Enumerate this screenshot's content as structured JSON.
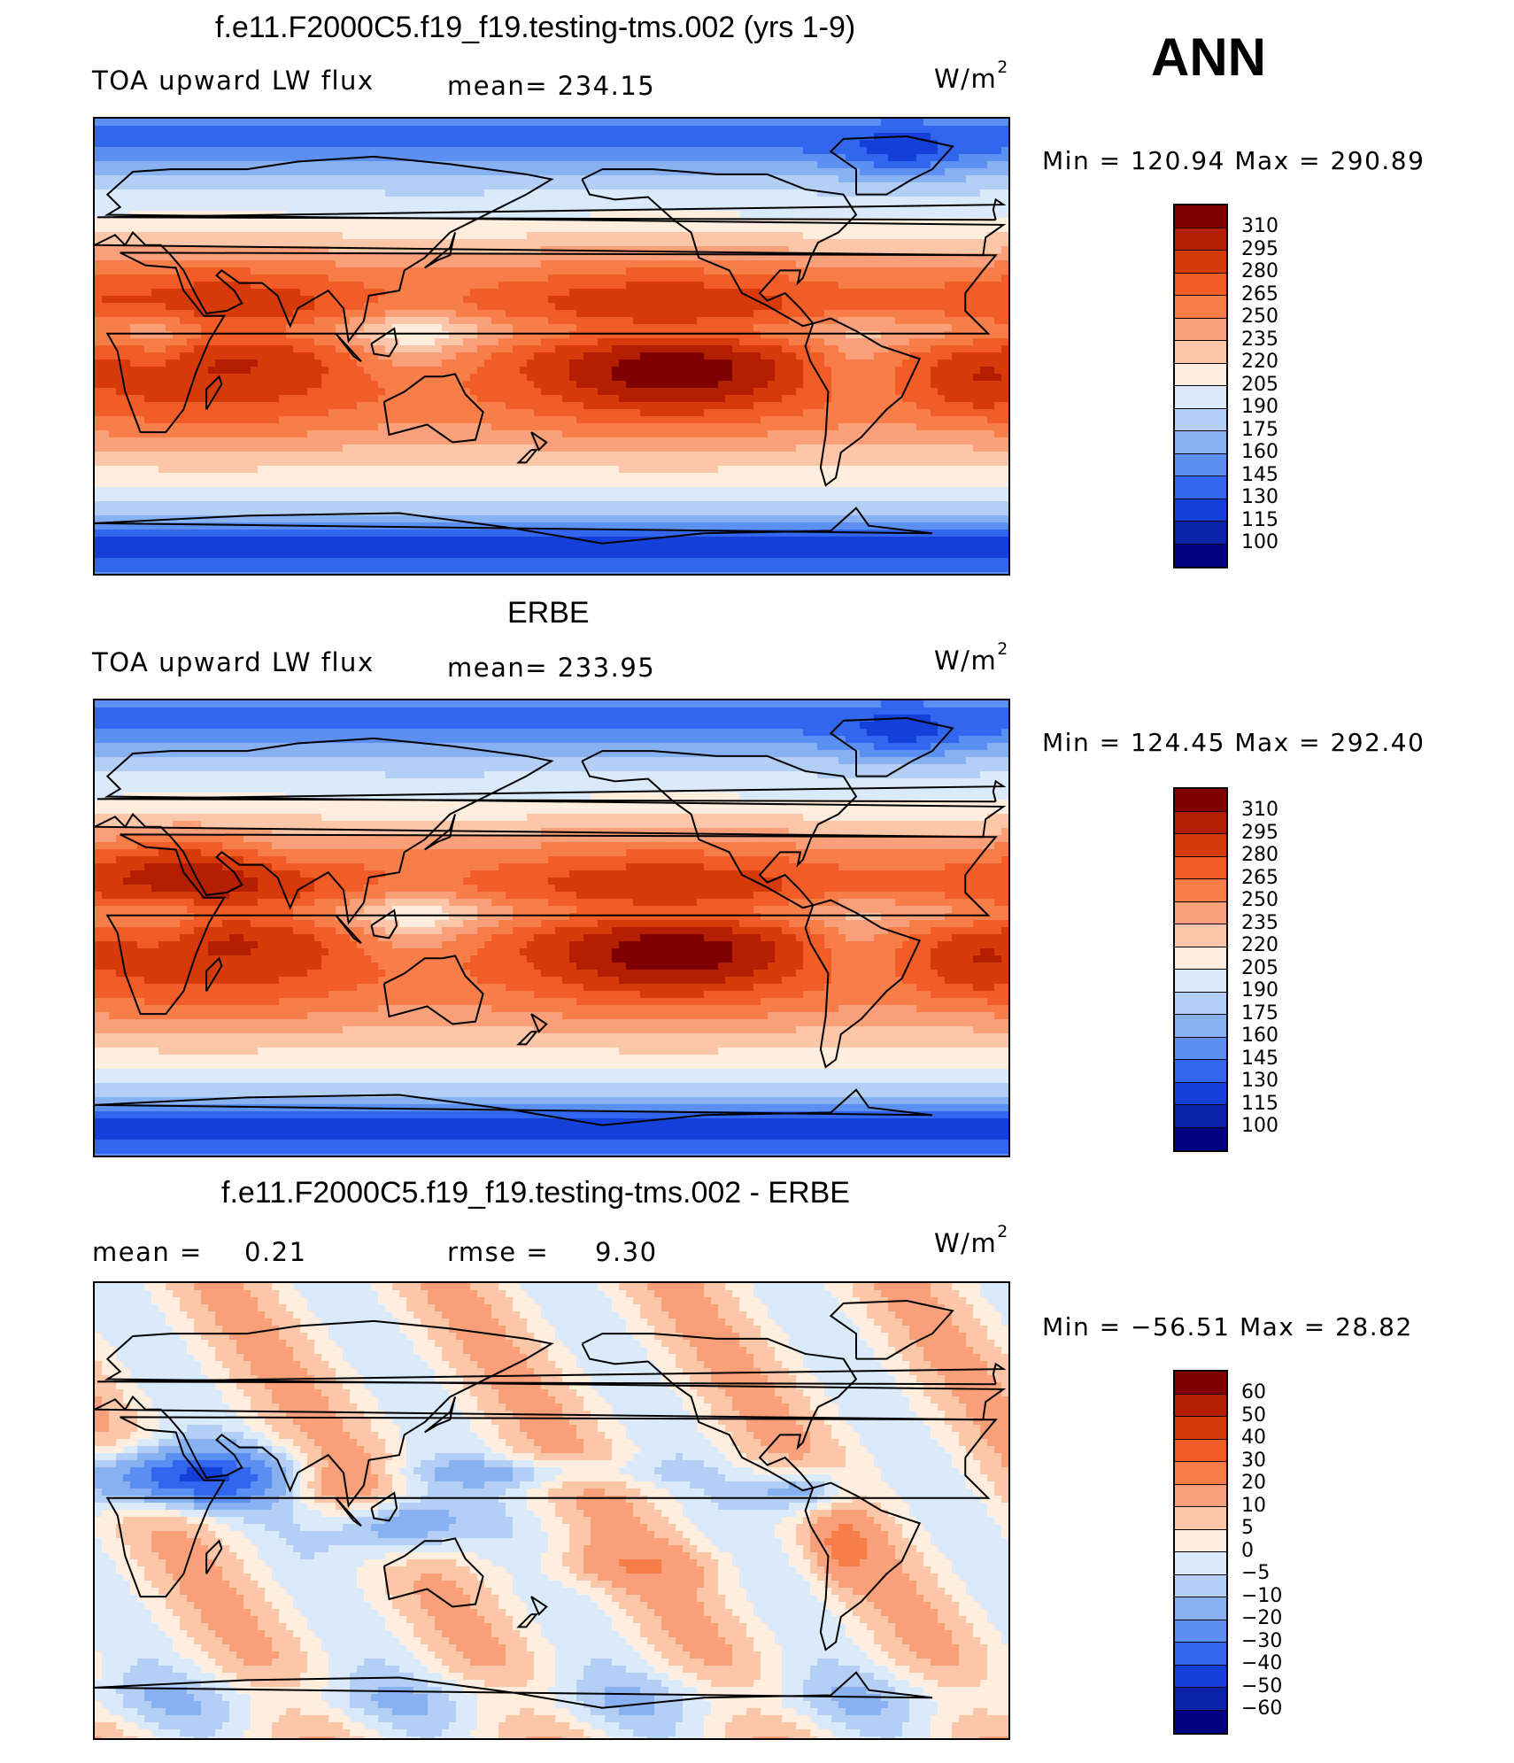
{
  "header": {
    "season": "ANN"
  },
  "panels": [
    {
      "title": "f.e11.F2000C5.f19_f19.testing-tms.002 (yrs 1-9)",
      "left_label": "TOA upward LW flux",
      "mean_label": "mean=  234.15",
      "units": "W/m",
      "units_sup": "2",
      "minmax": "Min  =  120.94  Max  =  290.89",
      "colorbar_levels": [
        "310",
        "295",
        "280",
        "265",
        "250",
        "235",
        "220",
        "205",
        "190",
        "175",
        "160",
        "145",
        "130",
        "115",
        "100"
      ],
      "colors": [
        "#7f0000",
        "#b31f00",
        "#d6390a",
        "#f25c26",
        "#f77d49",
        "#f9a07a",
        "#fcc6a8",
        "#ffeedd",
        "#dbeafa",
        "#b3cff5",
        "#88b1f2",
        "#5c8ff2",
        "#3366ee",
        "#1440d9",
        "#0a22a8",
        "#000080"
      ],
      "color_scale": [
        100,
        115,
        130,
        145,
        160,
        175,
        190,
        205,
        220,
        235,
        250,
        265,
        280,
        295,
        310
      ],
      "field_type": "model"
    },
    {
      "title": "ERBE",
      "left_label": "TOA upward LW flux",
      "mean_label": "mean=  233.95",
      "units": "W/m",
      "units_sup": "2",
      "minmax": "Min  =  124.45  Max  =  292.40",
      "colorbar_levels": [
        "310",
        "295",
        "280",
        "265",
        "250",
        "235",
        "220",
        "205",
        "190",
        "175",
        "160",
        "145",
        "130",
        "115",
        "100"
      ],
      "colors": [
        "#7f0000",
        "#b31f00",
        "#d6390a",
        "#f25c26",
        "#f77d49",
        "#f9a07a",
        "#fcc6a8",
        "#ffeedd",
        "#dbeafa",
        "#b3cff5",
        "#88b1f2",
        "#5c8ff2",
        "#3366ee",
        "#1440d9",
        "#0a22a8",
        "#000080"
      ],
      "color_scale": [
        100,
        115,
        130,
        145,
        160,
        175,
        190,
        205,
        220,
        235,
        250,
        265,
        280,
        295,
        310
      ],
      "field_type": "obs"
    },
    {
      "title": "f.e11.F2000C5.f19_f19.testing-tms.002 - ERBE",
      "left_label": "mean  =",
      "left_value": "0.21",
      "mean_label": "rmse  =",
      "mean_value": "9.30",
      "units": "W/m",
      "units_sup": "2",
      "minmax": "Min  =  −56.51  Max  =    28.82",
      "colorbar_levels": [
        "60",
        "50",
        "40",
        "30",
        "20",
        "10",
        "5",
        "0",
        "−5",
        "−10",
        "−20",
        "−30",
        "−40",
        "−50",
        "−60"
      ],
      "colors": [
        "#7f0000",
        "#b31f00",
        "#d6390a",
        "#f25c26",
        "#f77d49",
        "#f9a07a",
        "#fcc6a8",
        "#ffeedd",
        "#dbeafa",
        "#b3cff5",
        "#88b1f2",
        "#5c8ff2",
        "#3366ee",
        "#1440d9",
        "#0a22a8",
        "#000080"
      ],
      "color_scale": [
        -60,
        -50,
        -40,
        -30,
        -20,
        -10,
        -5,
        0,
        5,
        10,
        20,
        30,
        40,
        50,
        60
      ],
      "field_type": "diff"
    }
  ]
}
